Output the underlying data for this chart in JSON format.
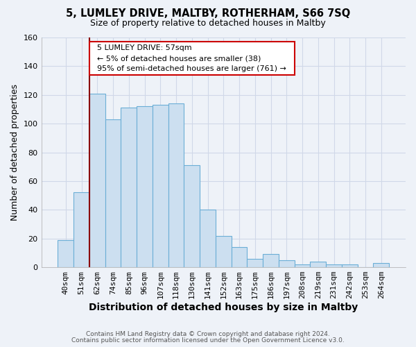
{
  "title": "5, LUMLEY DRIVE, MALTBY, ROTHERHAM, S66 7SQ",
  "subtitle": "Size of property relative to detached houses in Maltby",
  "xlabel": "Distribution of detached houses by size in Maltby",
  "ylabel": "Number of detached properties",
  "bar_labels": [
    "40sqm",
    "51sqm",
    "62sqm",
    "74sqm",
    "85sqm",
    "96sqm",
    "107sqm",
    "118sqm",
    "130sqm",
    "141sqm",
    "152sqm",
    "163sqm",
    "175sqm",
    "186sqm",
    "197sqm",
    "208sqm",
    "219sqm",
    "231sqm",
    "242sqm",
    "253sqm",
    "264sqm"
  ],
  "bar_values": [
    19,
    52,
    121,
    103,
    111,
    112,
    113,
    114,
    71,
    40,
    22,
    14,
    6,
    9,
    5,
    2,
    4,
    2,
    2,
    0,
    3
  ],
  "bar_color": "#ccdff0",
  "bar_edge_color": "#6baed6",
  "marker_line_color": "#8b0000",
  "ylim": [
    0,
    160
  ],
  "yticks": [
    0,
    20,
    40,
    60,
    80,
    100,
    120,
    140,
    160
  ],
  "annotation_title": "5 LUMLEY DRIVE: 57sqm",
  "annotation_line1": "← 5% of detached houses are smaller (38)",
  "annotation_line2": "95% of semi-detached houses are larger (761) →",
  "annotation_box_color": "#ffffff",
  "annotation_box_edge": "#cc0000",
  "footer_line1": "Contains HM Land Registry data © Crown copyright and database right 2024.",
  "footer_line2": "Contains public sector information licensed under the Open Government Licence v3.0.",
  "background_color": "#eef2f8",
  "plot_bg_color": "#eef2f8",
  "grid_color": "#d0d8e8"
}
